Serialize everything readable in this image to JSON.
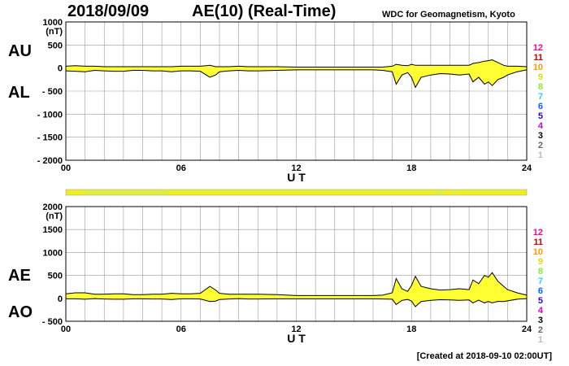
{
  "header": {
    "date": "2018/09/09",
    "title": "AE(10) (Real-Time)",
    "institution": "WDC for Geomagnetism, Kyoto"
  },
  "footer": "[Created at 2018-09-10 02:00UT]",
  "colors": {
    "fill": "#ffff33",
    "line": "#000000",
    "grid": "#999999",
    "bar": "#eeee22"
  },
  "station_counts": {
    "labels": [
      "12",
      "11",
      "10",
      "9",
      "8",
      "7",
      "6",
      "5",
      "4",
      "3",
      "2",
      "1"
    ],
    "colors": [
      "#ff0099",
      "#cc0000",
      "#ff9900",
      "#dddd00",
      "#88ee33",
      "#33ccff",
      "#0066ff",
      "#3300cc",
      "#cc00cc",
      "#000000",
      "#666666",
      "#bbbbbb"
    ]
  },
  "chart_data": [
    {
      "type": "area",
      "panel": "AU/AL",
      "labels": {
        "upper": "AU",
        "lower": "AL"
      },
      "ylabel": "(nT)",
      "xlabel": "U T",
      "xlim": [
        0,
        24
      ],
      "ylim": [
        -2000,
        1000
      ],
      "yticks": [
        1000,
        500,
        0,
        -500,
        -1000,
        -1500,
        -2000
      ],
      "ytick_labels": [
        "1000",
        "500",
        "0",
        "- 500",
        "- 1000",
        "- 1500",
        "- 2000"
      ],
      "xticks": [
        0,
        6,
        12,
        18,
        24
      ],
      "xtick_labels": [
        "00",
        "06",
        "12",
        "18",
        "24"
      ],
      "grid": true,
      "x": [
        0,
        0.5,
        1,
        1.5,
        2,
        2.5,
        3,
        3.5,
        4,
        4.5,
        5,
        5.5,
        6,
        6.5,
        7,
        7.5,
        7.8,
        8,
        8.5,
        9,
        9.5,
        10,
        11,
        12,
        13,
        14,
        15,
        16,
        16.5,
        17,
        17.2,
        17.5,
        17.8,
        18,
        18.2,
        18.5,
        19,
        19.5,
        20,
        20.5,
        21,
        21.2,
        21.5,
        21.8,
        22,
        22.2,
        22.5,
        22.8,
        23,
        23.5,
        24
      ],
      "series": [
        {
          "name": "AU",
          "values": [
            40,
            50,
            40,
            40,
            30,
            30,
            30,
            30,
            30,
            30,
            30,
            30,
            40,
            40,
            40,
            60,
            30,
            30,
            30,
            40,
            30,
            30,
            30,
            20,
            20,
            20,
            20,
            20,
            20,
            40,
            80,
            60,
            50,
            80,
            60,
            60,
            60,
            60,
            60,
            60,
            60,
            100,
            120,
            150,
            160,
            180,
            120,
            60,
            40,
            40,
            30
          ]
        },
        {
          "name": "AL",
          "values": [
            -60,
            -70,
            -80,
            -50,
            -60,
            -70,
            -70,
            -50,
            -50,
            -60,
            -60,
            -80,
            -60,
            -60,
            -70,
            -200,
            -150,
            -80,
            -60,
            -50,
            -60,
            -60,
            -50,
            -40,
            -40,
            -40,
            -40,
            -40,
            -50,
            -80,
            -350,
            -150,
            -100,
            -200,
            -420,
            -200,
            -150,
            -120,
            -130,
            -150,
            -130,
            -300,
            -200,
            -350,
            -300,
            -380,
            -250,
            -200,
            -150,
            -80,
            -40
          ]
        }
      ]
    },
    {
      "type": "area",
      "panel": "AE/AO",
      "labels": {
        "upper": "AE",
        "lower": "AO"
      },
      "ylabel": "(nT)",
      "xlabel": "U T",
      "xlim": [
        0,
        24
      ],
      "ylim": [
        -500,
        2000
      ],
      "yticks": [
        2000,
        1500,
        1000,
        500,
        0,
        -500
      ],
      "ytick_labels": [
        "2000",
        "1500",
        "1000",
        "500",
        "0",
        "- 500"
      ],
      "xticks": [
        0,
        6,
        12,
        18,
        24
      ],
      "xtick_labels": [
        "00",
        "06",
        "12",
        "18",
        "24"
      ],
      "grid": true,
      "x": [
        0,
        0.5,
        1,
        1.5,
        2,
        2.5,
        3,
        3.5,
        4,
        4.5,
        5,
        5.5,
        6,
        6.5,
        7,
        7.5,
        7.8,
        8,
        8.5,
        9,
        9.5,
        10,
        11,
        12,
        13,
        14,
        15,
        16,
        16.5,
        17,
        17.2,
        17.5,
        17.8,
        18,
        18.2,
        18.5,
        19,
        19.5,
        20,
        20.5,
        21,
        21.2,
        21.5,
        21.8,
        22,
        22.2,
        22.5,
        22.8,
        23,
        23.5,
        24
      ],
      "series": [
        {
          "name": "AE",
          "values": [
            100,
            120,
            120,
            90,
            90,
            100,
            100,
            80,
            80,
            90,
            90,
            110,
            100,
            100,
            110,
            260,
            180,
            110,
            90,
            90,
            90,
            90,
            80,
            60,
            60,
            60,
            60,
            60,
            70,
            120,
            430,
            210,
            150,
            280,
            480,
            260,
            210,
            180,
            190,
            210,
            190,
            400,
            320,
            500,
            460,
            560,
            370,
            260,
            190,
            120,
            70
          ]
        },
        {
          "name": "AO",
          "values": [
            -10,
            -10,
            -20,
            -5,
            -15,
            -20,
            -20,
            -10,
            -10,
            -15,
            -15,
            -25,
            -10,
            -10,
            -15,
            -70,
            -60,
            -25,
            -15,
            -5,
            -15,
            -15,
            -10,
            -10,
            -10,
            -10,
            -10,
            -10,
            -15,
            -20,
            -135,
            -45,
            -25,
            -60,
            -180,
            -70,
            -45,
            -30,
            -35,
            -45,
            -35,
            -100,
            -40,
            -100,
            -70,
            -100,
            -65,
            -70,
            -55,
            -20,
            -5
          ]
        }
      ]
    }
  ]
}
